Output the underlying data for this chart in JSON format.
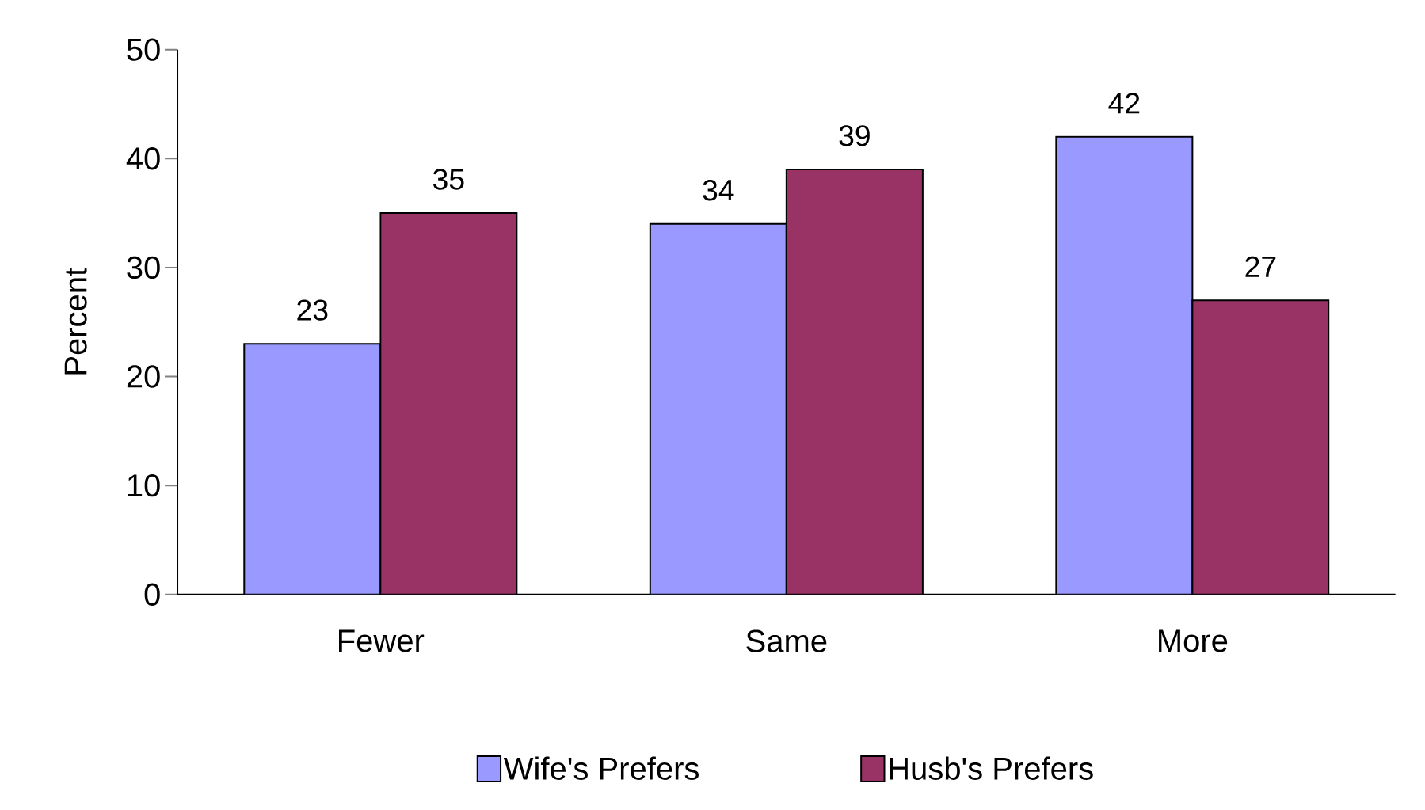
{
  "chart_data": {
    "type": "bar",
    "ylabel": "Percent",
    "categories": [
      "Fewer",
      "Same",
      "More"
    ],
    "series": [
      {
        "name": "Wife's Prefers",
        "color": "#9999ff",
        "values": [
          23,
          34,
          42
        ]
      },
      {
        "name": "Husb's Prefers",
        "color": "#993366",
        "values": [
          35,
          39,
          27
        ]
      }
    ],
    "ylim": [
      0,
      50
    ],
    "yticks": [
      0,
      10,
      20,
      30,
      40,
      50
    ],
    "data_labels": true,
    "legend": "bottom",
    "grid": false
  }
}
